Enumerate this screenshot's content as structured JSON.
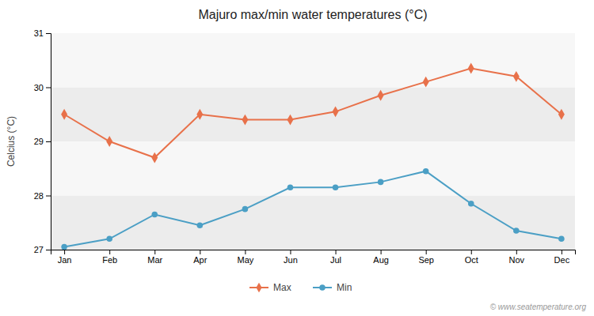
{
  "chart_data": {
    "type": "line",
    "title": "Majuro max/min water temperatures (°C)",
    "ylabel": "Celcius (°C)",
    "categories": [
      "Jan",
      "Feb",
      "Mar",
      "Apr",
      "May",
      "Jun",
      "Jul",
      "Aug",
      "Sep",
      "Oct",
      "Nov",
      "Dec"
    ],
    "series": [
      {
        "name": "Max",
        "color": "#e8714a",
        "marker": "diamond",
        "values": [
          29.5,
          29.0,
          28.7,
          29.5,
          29.4,
          29.4,
          29.55,
          29.85,
          30.1,
          30.35,
          30.2,
          29.5
        ]
      },
      {
        "name": "Min",
        "color": "#4b9fc5",
        "marker": "circle",
        "values": [
          27.05,
          27.2,
          27.65,
          27.45,
          27.75,
          28.15,
          28.15,
          28.25,
          28.45,
          27.85,
          27.35,
          27.2
        ]
      }
    ],
    "ylim": [
      27,
      31
    ],
    "yticks": [
      27,
      28,
      29,
      30,
      31
    ],
    "grid": false,
    "legend": "bottom",
    "annotations": [
      "© www.seatemperature.org"
    ]
  }
}
